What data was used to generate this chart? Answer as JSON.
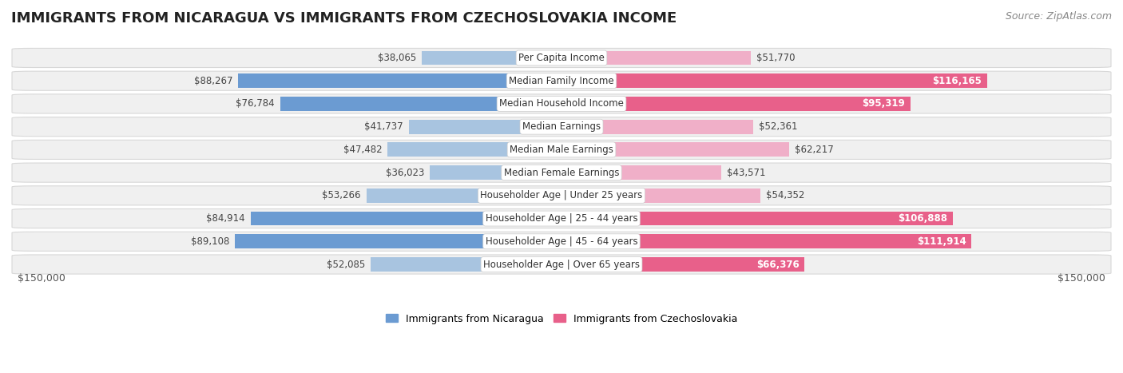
{
  "title": "IMMIGRANTS FROM NICARAGUA VS IMMIGRANTS FROM CZECHOSLOVAKIA INCOME",
  "source": "Source: ZipAtlas.com",
  "categories": [
    "Per Capita Income",
    "Median Family Income",
    "Median Household Income",
    "Median Earnings",
    "Median Male Earnings",
    "Median Female Earnings",
    "Householder Age | Under 25 years",
    "Householder Age | 25 - 44 years",
    "Householder Age | 45 - 64 years",
    "Householder Age | Over 65 years"
  ],
  "nicaragua_values": [
    38065,
    88267,
    76784,
    41737,
    47482,
    36023,
    53266,
    84914,
    89108,
    52085
  ],
  "czechoslovakia_values": [
    51770,
    116165,
    95319,
    52361,
    62217,
    43571,
    54352,
    106888,
    111914,
    66376
  ],
  "nicaragua_labels": [
    "$38,065",
    "$88,267",
    "$76,784",
    "$41,737",
    "$47,482",
    "$36,023",
    "$53,266",
    "$84,914",
    "$89,108",
    "$52,085"
  ],
  "czechoslovakia_labels": [
    "$51,770",
    "$116,165",
    "$95,319",
    "$52,361",
    "$62,217",
    "$43,571",
    "$54,352",
    "$106,888",
    "$111,914",
    "$66,376"
  ],
  "nicaragua_color_dark": "#6b9bd2",
  "nicaragua_color_light": "#a8c4e0",
  "czechoslovakia_color_dark": "#e8608a",
  "czechoslovakia_color_light": "#f0afc8",
  "dark_threshold": 65000,
  "bar_height": 0.62,
  "max_value": 150000,
  "xlabel_left": "$150,000",
  "xlabel_right": "$150,000",
  "legend_nicaragua": "Immigrants from Nicaragua",
  "legend_czechoslovakia": "Immigrants from Czechoslovakia",
  "bg_color": "#ffffff",
  "row_bg": "#f0f0f0",
  "row_border": "#d8d8d8",
  "title_fontsize": 13,
  "source_fontsize": 9,
  "category_fontsize": 8.5,
  "value_fontsize": 8.5
}
